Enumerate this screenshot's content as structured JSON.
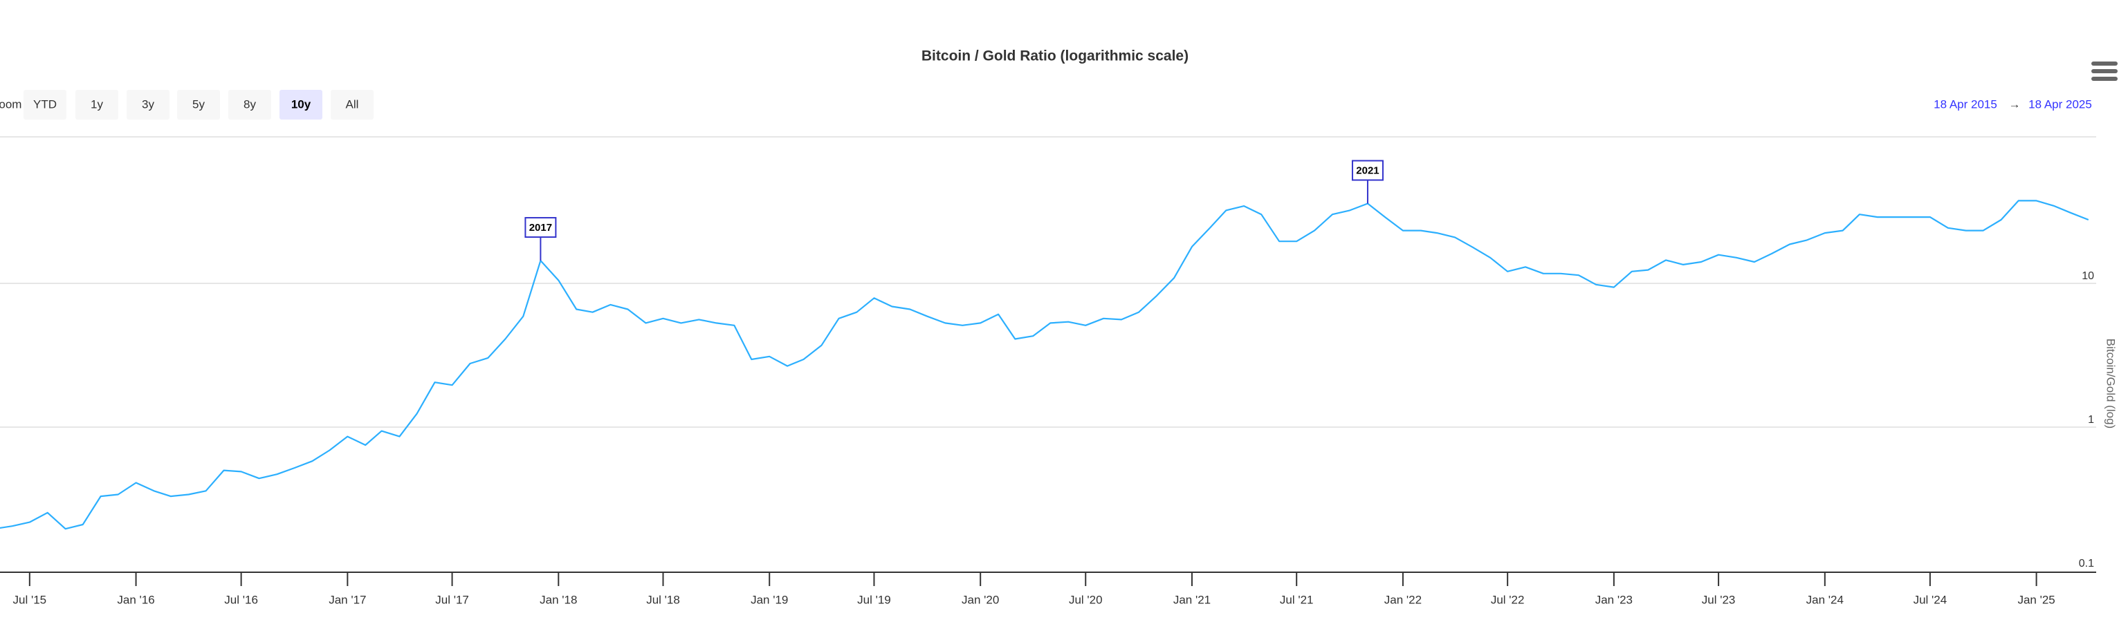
{
  "chart_data": {
    "type": "line",
    "title": "Bitcoin / Gold Ratio (logarithmic scale)",
    "y_label": "Bitcoin/Gold (log)",
    "log_scale": true,
    "grid": true,
    "xlim": [
      "2015-04-18",
      "2025-04-18"
    ],
    "xticks": [
      {
        "value": "2015-07",
        "label": "Jul '15"
      },
      {
        "value": "2016-01",
        "label": "Jan '16"
      },
      {
        "value": "2016-07",
        "label": "Jul '16"
      },
      {
        "value": "2017-01",
        "label": "Jan '17"
      },
      {
        "value": "2017-07",
        "label": "Jul '17"
      },
      {
        "value": "2018-01",
        "label": "Jan '18"
      },
      {
        "value": "2018-07",
        "label": "Jul '18"
      },
      {
        "value": "2019-01",
        "label": "Jan '19"
      },
      {
        "value": "2019-07",
        "label": "Jul '19"
      },
      {
        "value": "2020-01",
        "label": "Jan '20"
      },
      {
        "value": "2020-07",
        "label": "Jul '20"
      },
      {
        "value": "2021-01",
        "label": "Jan '21"
      },
      {
        "value": "2021-07",
        "label": "Jul '21"
      },
      {
        "value": "2022-01",
        "label": "Jan '22"
      },
      {
        "value": "2022-07",
        "label": "Jul '22"
      },
      {
        "value": "2023-01",
        "label": "Jan '23"
      },
      {
        "value": "2023-07",
        "label": "Jul '23"
      },
      {
        "value": "2024-01",
        "label": "Jan '24"
      },
      {
        "value": "2024-07",
        "label": "Jul '24"
      },
      {
        "value": "2025-01",
        "label": "Jan '25"
      }
    ],
    "ylim": [
      0.1,
      100
    ],
    "yticks": [
      0.1,
      1,
      10
    ],
    "x": [
      "2015-04",
      "2015-05",
      "2015-06",
      "2015-07",
      "2015-08",
      "2015-09",
      "2015-10",
      "2015-11",
      "2015-12",
      "2016-01",
      "2016-02",
      "2016-03",
      "2016-04",
      "2016-05",
      "2016-06",
      "2016-07",
      "2016-08",
      "2016-09",
      "2016-10",
      "2016-11",
      "2016-12",
      "2017-01",
      "2017-02",
      "2017-03",
      "2017-04",
      "2017-05",
      "2017-06",
      "2017-07",
      "2017-08",
      "2017-09",
      "2017-10",
      "2017-11",
      "2017-12",
      "2018-01",
      "2018-02",
      "2018-03",
      "2018-04",
      "2018-05",
      "2018-06",
      "2018-07",
      "2018-08",
      "2018-09",
      "2018-10",
      "2018-11",
      "2018-12",
      "2019-01",
      "2019-02",
      "2019-03",
      "2019-04",
      "2019-05",
      "2019-06",
      "2019-07",
      "2019-08",
      "2019-09",
      "2019-10",
      "2019-11",
      "2019-12",
      "2020-01",
      "2020-02",
      "2020-03",
      "2020-04",
      "2020-05",
      "2020-06",
      "2020-07",
      "2020-08",
      "2020-09",
      "2020-10",
      "2020-11",
      "2020-12",
      "2021-01",
      "2021-02",
      "2021-03",
      "2021-04",
      "2021-05",
      "2021-06",
      "2021-07",
      "2021-08",
      "2021-09",
      "2021-10",
      "2021-11",
      "2021-12",
      "2022-01",
      "2022-02",
      "2022-03",
      "2022-04",
      "2022-05",
      "2022-06",
      "2022-07",
      "2022-08",
      "2022-09",
      "2022-10",
      "2022-11",
      "2022-12",
      "2023-01",
      "2023-02",
      "2023-03",
      "2023-04",
      "2023-05",
      "2023-06",
      "2023-07",
      "2023-08",
      "2023-09",
      "2023-10",
      "2023-11",
      "2023-12",
      "2024-01",
      "2024-02",
      "2024-03",
      "2024-04",
      "2024-05",
      "2024-06",
      "2024-07",
      "2024-08",
      "2024-09",
      "2024-10",
      "2024-11",
      "2024-12",
      "2025-01",
      "2025-02",
      "2025-03",
      "2025-04"
    ],
    "series": [
      {
        "name": "Bitcoin/Gold",
        "color": "#2caffe",
        "values": [
          0.196,
          0.196,
          0.205,
          0.218,
          0.254,
          0.196,
          0.21,
          0.33,
          0.34,
          0.41,
          0.36,
          0.33,
          0.34,
          0.36,
          0.5,
          0.49,
          0.44,
          0.47,
          0.52,
          0.58,
          0.69,
          0.86,
          0.75,
          0.94,
          0.86,
          1.24,
          2.05,
          1.96,
          2.77,
          3.03,
          4.1,
          5.9,
          14.4,
          10.5,
          6.6,
          6.3,
          7.1,
          6.6,
          5.3,
          5.7,
          5.3,
          5.6,
          5.3,
          5.1,
          2.96,
          3.1,
          2.66,
          2.96,
          3.7,
          5.7,
          6.3,
          7.9,
          6.9,
          6.6,
          5.9,
          5.3,
          5.1,
          5.3,
          6.1,
          4.1,
          4.3,
          5.3,
          5.4,
          5.1,
          5.7,
          5.6,
          6.3,
          8.2,
          10.9,
          18,
          24.3,
          32.2,
          34.5,
          30.2,
          19.6,
          19.6,
          23.3,
          30.2,
          32.2,
          35.9,
          28.9,
          23.3,
          23.3,
          22.4,
          20.9,
          17.9,
          15.1,
          12.1,
          13,
          11.7,
          11.7,
          11.4,
          9.8,
          9.4,
          12.1,
          12.4,
          14.5,
          13.5,
          14.1,
          15.8,
          15.1,
          14.1,
          16.1,
          18.7,
          20,
          22.4,
          23.3,
          30.2,
          28.9,
          28.9,
          28.9,
          28.9,
          24.3,
          23.3,
          23.3,
          27.7,
          37.6,
          37.6,
          34.5,
          31,
          27.7
        ]
      }
    ],
    "annotations": [
      {
        "x": "2017-12",
        "label": "2017"
      },
      {
        "x": "2021-11",
        "label": "2021"
      }
    ]
  },
  "range_selector": {
    "zoom_label": "Zoom",
    "buttons": [
      "YTD",
      "1y",
      "3y",
      "5y",
      "8y",
      "10y",
      "All"
    ],
    "selected_index": 5,
    "from": "18 Apr 2015",
    "arrow": "→",
    "to": "18 Apr 2025"
  }
}
